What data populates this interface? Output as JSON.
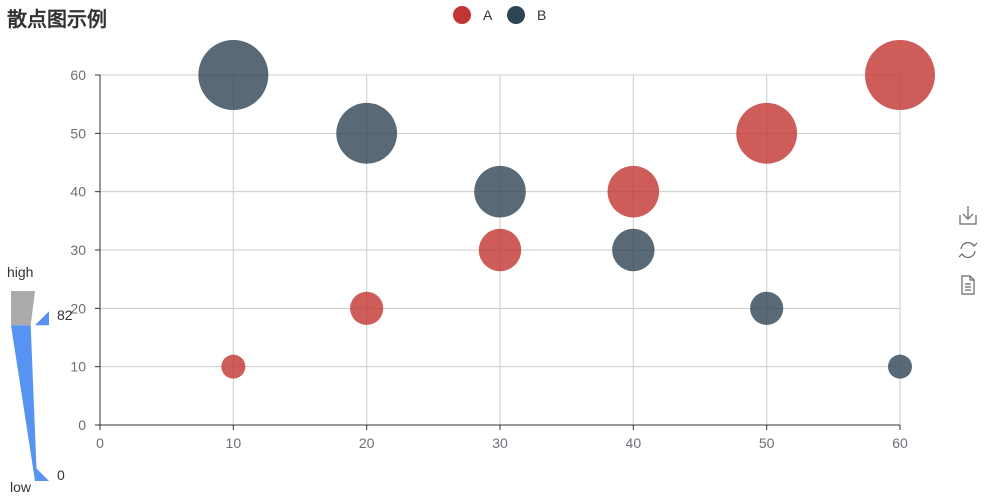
{
  "chart_data": {
    "type": "scatter",
    "title": "散点图示例",
    "xlabel": "",
    "ylabel": "",
    "xlim": [
      0,
      60
    ],
    "ylim": [
      0,
      60
    ],
    "x_ticks": [
      0,
      10,
      20,
      30,
      40,
      50,
      60
    ],
    "y_ticks": [
      0,
      10,
      20,
      30,
      40,
      50,
      60
    ],
    "grid": true,
    "legend_position": "top-center",
    "series": [
      {
        "name": "A",
        "color": "#c23531",
        "points": [
          [
            10,
            10
          ],
          [
            20,
            20
          ],
          [
            30,
            30
          ],
          [
            40,
            40
          ],
          [
            50,
            50
          ],
          [
            60,
            60
          ]
        ]
      },
      {
        "name": "B",
        "color": "#2f4554",
        "points": [
          [
            10,
            60
          ],
          [
            20,
            50
          ],
          [
            30,
            40
          ],
          [
            40,
            30
          ],
          [
            50,
            20
          ],
          [
            60,
            10
          ]
        ]
      }
    ],
    "symbol_size": "proportional to y value",
    "visual_map": {
      "type": "continuous",
      "position": "bottom-left",
      "text_high": "high",
      "text_low": "low",
      "min": 0,
      "max": 100,
      "handle_top_value": "82",
      "handle_bottom_value": "0",
      "in_range_color": "#5793f3",
      "out_of_range_color": "#aaaaaa"
    },
    "toolbox": {
      "icons": [
        "download-icon",
        "refresh-icon",
        "data-view-icon"
      ]
    }
  }
}
